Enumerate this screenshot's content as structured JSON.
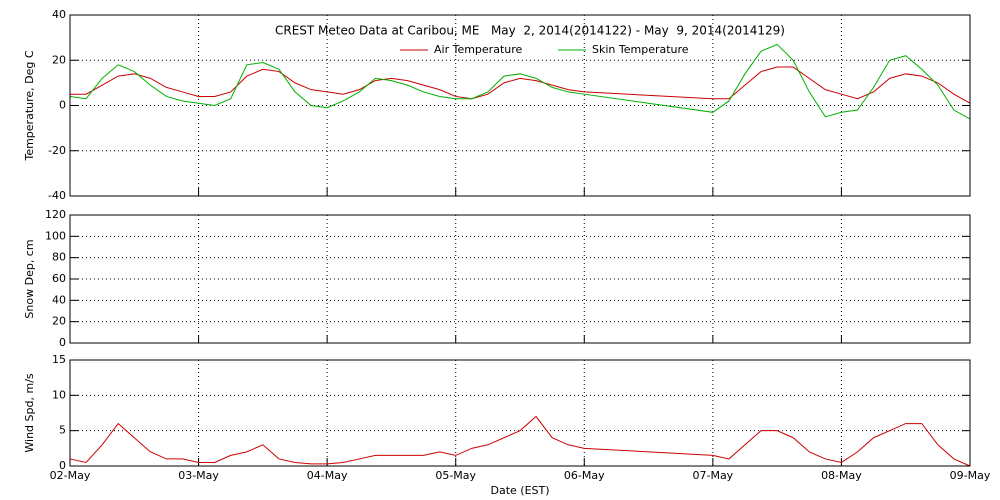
{
  "chart_data": [
    {
      "type": "line",
      "title": "CREST Meteo Data at Caribou, ME   May  2, 2014(2014122) - May  9, 2014(2014129)",
      "y_label": "Temperature, Deg C",
      "ylim": [
        -40,
        40
      ],
      "yticks": [
        -40,
        -20,
        0,
        20,
        40
      ],
      "xlim": [
        0,
        7
      ],
      "xticks": [
        0,
        1,
        2,
        3,
        4,
        5,
        6,
        7
      ],
      "grid": true,
      "x": [
        0,
        0.125,
        0.25,
        0.375,
        0.5,
        0.625,
        0.75,
        0.875,
        1,
        1.125,
        1.25,
        1.375,
        1.5,
        1.625,
        1.75,
        1.875,
        2,
        2.125,
        2.25,
        2.375,
        2.5,
        2.625,
        2.75,
        2.875,
        3,
        3.125,
        3.25,
        3.375,
        3.5,
        3.625,
        3.75,
        3.875,
        4,
        5,
        5.125,
        5.25,
        5.375,
        5.5,
        5.625,
        5.75,
        5.875,
        6,
        6.125,
        6.25,
        6.375,
        6.5,
        6.625,
        6.75,
        6.875,
        7
      ],
      "series": [
        {
          "name": "Air Temperature",
          "color": "#cc0000",
          "values": [
            5,
            5,
            9,
            13,
            14,
            12,
            8,
            6,
            4,
            4,
            6,
            13,
            16,
            15,
            10,
            7,
            6,
            5,
            7,
            11,
            12,
            11,
            9,
            7,
            4,
            3,
            5,
            10,
            12,
            11,
            9,
            7,
            6,
            3,
            3,
            9,
            15,
            17,
            17,
            12,
            7,
            5,
            3,
            6,
            12,
            14,
            13,
            10,
            5,
            1
          ]
        },
        {
          "name": "Skin Temperature",
          "color": "#00b000",
          "values": [
            4,
            3,
            12,
            18,
            15,
            9,
            4,
            2,
            1,
            0,
            3,
            18,
            19,
            16,
            6,
            0,
            -1,
            2,
            6,
            12,
            11,
            9,
            6,
            4,
            3,
            3,
            6,
            13,
            14,
            12,
            8,
            6,
            5,
            -3,
            2,
            14,
            24,
            27,
            20,
            6,
            -5,
            -3,
            -2,
            8,
            20,
            22,
            16,
            9,
            -2,
            -6
          ]
        }
      ]
    },
    {
      "type": "line",
      "y_label": "Snow Dep, cm",
      "ylim": [
        0,
        120
      ],
      "yticks": [
        0,
        20,
        40,
        60,
        80,
        100,
        120
      ],
      "xlim": [
        0,
        7
      ],
      "xticks": [
        0,
        1,
        2,
        3,
        4,
        5,
        6,
        7
      ],
      "grid": true,
      "series": []
    },
    {
      "type": "line",
      "y_label": "Wind Spd, m/s",
      "x_label": "Date (EST)",
      "ylim": [
        0,
        15
      ],
      "yticks": [
        0,
        5,
        10,
        15
      ],
      "xlim": [
        0,
        7
      ],
      "grid": true,
      "xticks": [
        {
          "value": 0,
          "label": "02-May"
        },
        {
          "value": 1,
          "label": "03-May"
        },
        {
          "value": 2,
          "label": "04-May"
        },
        {
          "value": 3,
          "label": "05-May"
        },
        {
          "value": 4,
          "label": "06-May"
        },
        {
          "value": 5,
          "label": "07-May"
        },
        {
          "value": 6,
          "label": "08-May"
        },
        {
          "value": 7,
          "label": "09-May"
        }
      ],
      "x": [
        0,
        0.125,
        0.25,
        0.375,
        0.5,
        0.625,
        0.75,
        0.875,
        1,
        1.125,
        1.25,
        1.375,
        1.5,
        1.625,
        1.75,
        1.875,
        2,
        2.125,
        2.25,
        2.375,
        2.5,
        2.625,
        2.75,
        2.875,
        3,
        3.125,
        3.25,
        3.375,
        3.5,
        3.625,
        3.75,
        3.875,
        4,
        5,
        5.125,
        5.25,
        5.375,
        5.5,
        5.625,
        5.75,
        5.875,
        6,
        6.125,
        6.25,
        6.375,
        6.5,
        6.625,
        6.75,
        6.875,
        7
      ],
      "series": [
        {
          "color": "#cc0000",
          "values": [
            1,
            0.5,
            3,
            6,
            4,
            2,
            1,
            1,
            0.5,
            0.5,
            1.5,
            2,
            3,
            1,
            0.5,
            0.3,
            0.3,
            0.5,
            1,
            1.5,
            1.5,
            1.5,
            1.5,
            2,
            1.5,
            2.5,
            3,
            4,
            5,
            7,
            4,
            3,
            2.5,
            1.5,
            1,
            3,
            5,
            5,
            4,
            2,
            1,
            0.5,
            2,
            4,
            5,
            6,
            6,
            3,
            1,
            0
          ]
        }
      ]
    }
  ]
}
